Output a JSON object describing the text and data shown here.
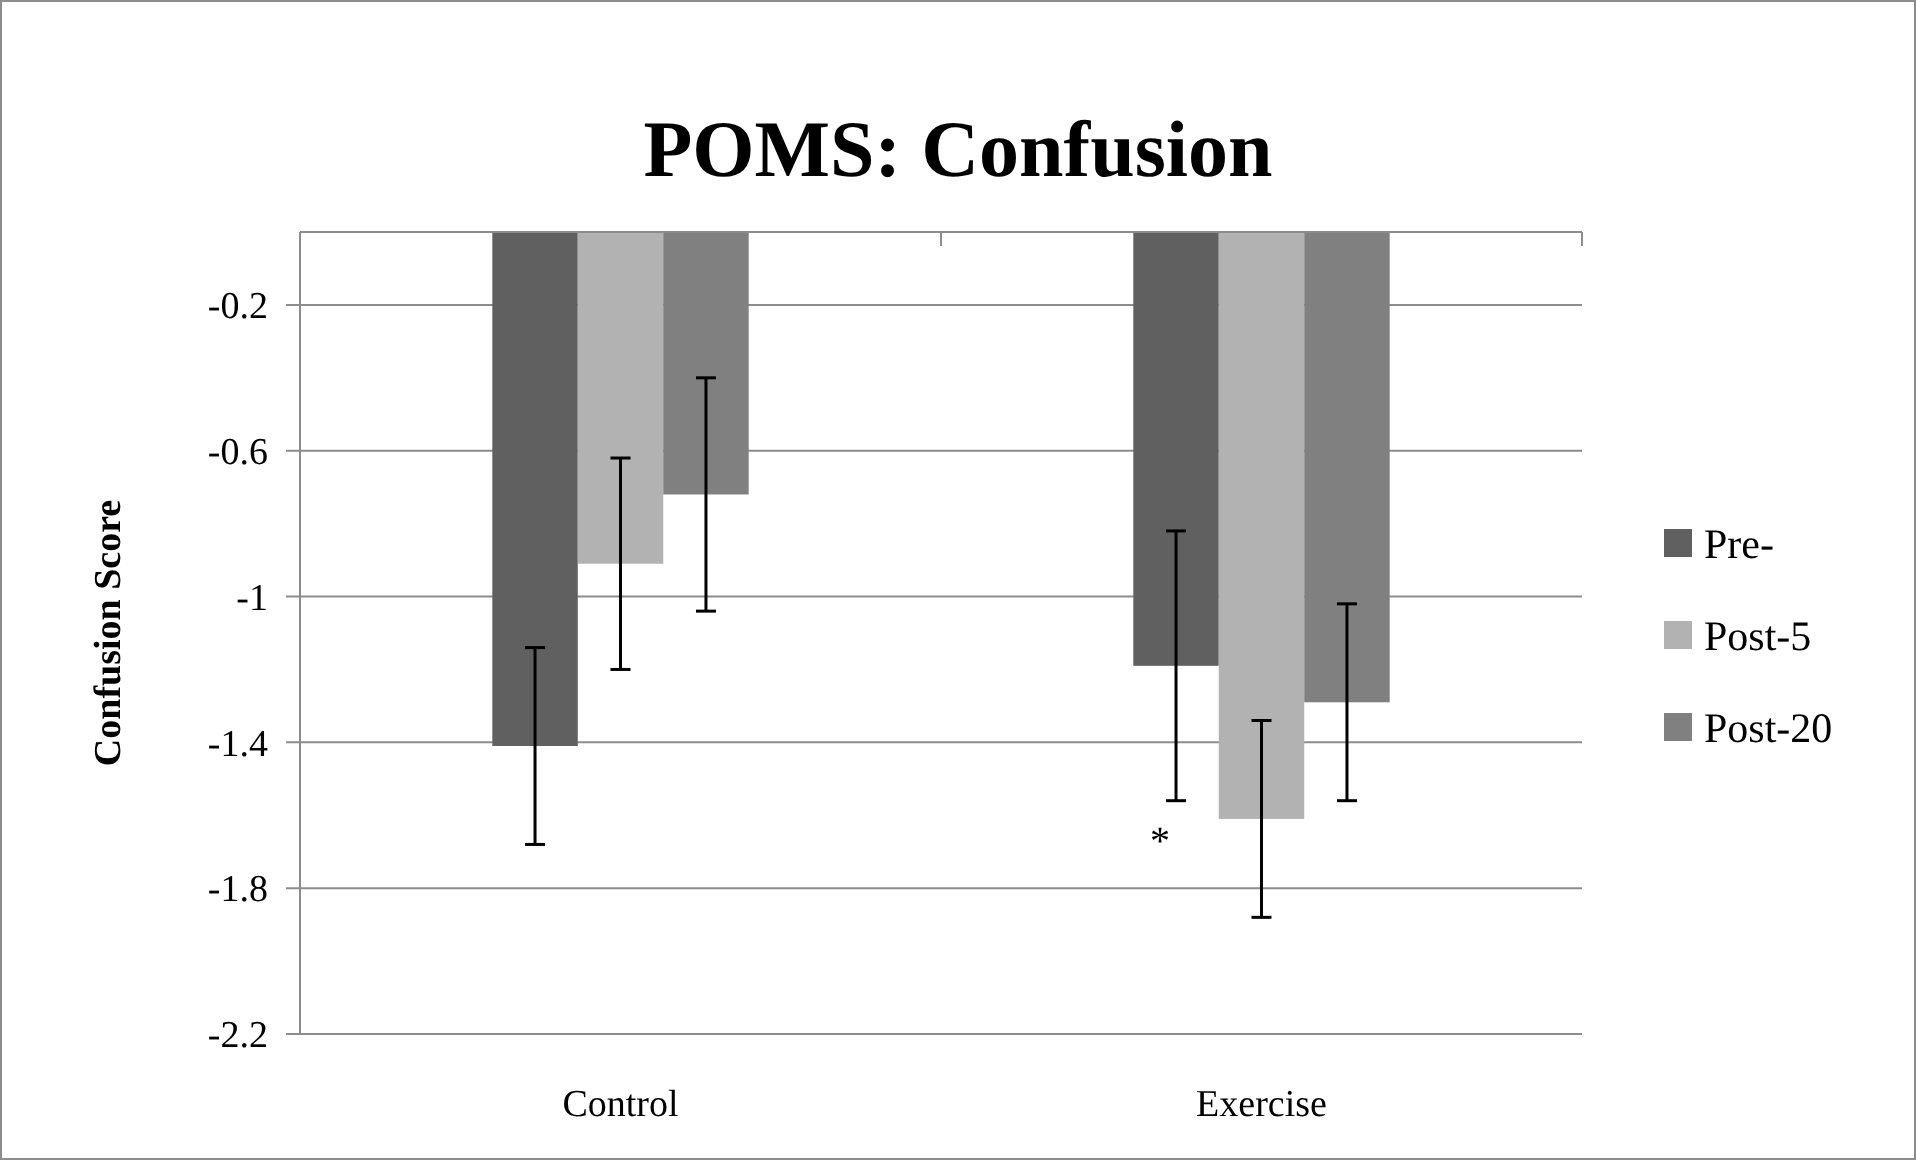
{
  "chart_data": {
    "type": "bar",
    "title": "POMS: Confusion",
    "ylabel": "Confusion Score",
    "categories": [
      "Control",
      "Exercise"
    ],
    "series": [
      {
        "name": "Pre-",
        "color": "#606060",
        "values": [
          -1.41,
          -1.19
        ],
        "errors": [
          0.27,
          0.37
        ]
      },
      {
        "name": "Post-5",
        "color": "#b2b2b2",
        "values": [
          -0.91,
          -1.61
        ],
        "errors": [
          0.29,
          0.27
        ]
      },
      {
        "name": "Post-20",
        "color": "#808080",
        "values": [
          -0.72,
          -1.29
        ],
        "errors": [
          0.32,
          0.27
        ]
      }
    ],
    "ylim": [
      -2.2,
      0
    ],
    "yticks": [
      -0.2,
      -0.6,
      -1,
      -1.4,
      -1.8,
      -2.2
    ],
    "grid": "y",
    "legend": "right",
    "annotations": [
      {
        "text": "*",
        "x": "Exercise",
        "y": -1.63
      }
    ]
  }
}
